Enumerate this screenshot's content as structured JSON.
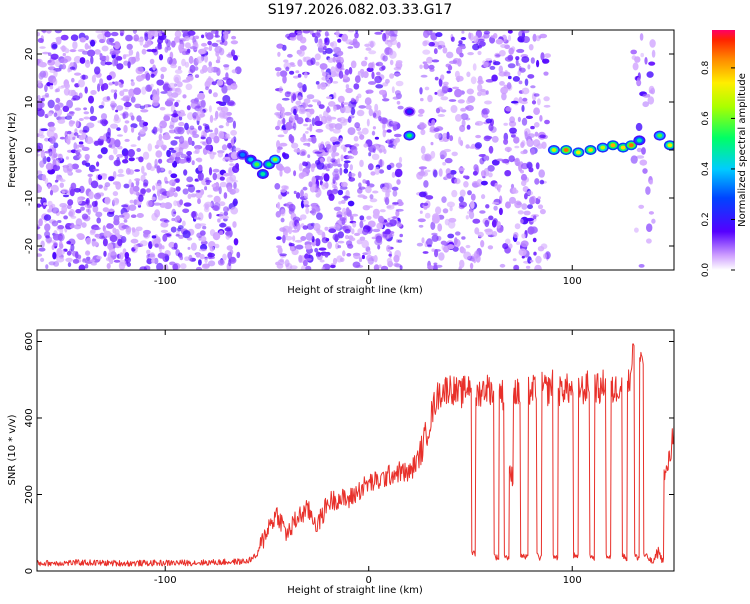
{
  "title": "S197.2026.082.03.33.G17",
  "chart_data": [
    {
      "type": "heatmap",
      "xlabel": "Height of straight line (km)",
      "ylabel": "Frequency (Hz)",
      "xlim": [
        -163,
        150
      ],
      "ylim": [
        -25,
        25
      ],
      "xticks": [
        -100,
        0,
        100
      ],
      "yticks": [
        -20,
        -10,
        0,
        10,
        20
      ],
      "colorbar": {
        "label": "Normalized spectral amplitude",
        "range": [
          0,
          0.95
        ],
        "ticks": [
          0.0,
          0.2,
          0.4,
          0.6,
          0.8
        ]
      },
      "noise_regions": [
        {
          "x_start": -163,
          "x_end": -64,
          "density": "high"
        },
        {
          "x_start": -45,
          "x_end": 16,
          "density": "high"
        },
        {
          "x_start": 25,
          "x_end": 88,
          "density": "medium"
        },
        {
          "x_start": 130,
          "x_end": 140,
          "density": "low"
        }
      ],
      "signal_points": [
        {
          "x": -62,
          "y": -1,
          "amp": 0.35
        },
        {
          "x": -58,
          "y": -2,
          "amp": 0.45
        },
        {
          "x": -55,
          "y": -3,
          "amp": 0.6
        },
        {
          "x": -52,
          "y": -5,
          "amp": 0.5
        },
        {
          "x": -49,
          "y": -3,
          "amp": 0.55
        },
        {
          "x": -46,
          "y": -2,
          "amp": 0.65
        },
        {
          "x": 20,
          "y": 3,
          "amp": 0.55
        },
        {
          "x": 20,
          "y": 8,
          "amp": 0.25
        },
        {
          "x": 91,
          "y": 0,
          "amp": 0.7
        },
        {
          "x": 97,
          "y": 0,
          "amp": 0.9
        },
        {
          "x": 103,
          "y": -0.5,
          "amp": 0.75
        },
        {
          "x": 109,
          "y": 0,
          "amp": 0.8
        },
        {
          "x": 115,
          "y": 0.5,
          "amp": 0.7
        },
        {
          "x": 120,
          "y": 1,
          "amp": 0.85
        },
        {
          "x": 125,
          "y": 0.5,
          "amp": 0.8
        },
        {
          "x": 129,
          "y": 1,
          "amp": 0.9
        },
        {
          "x": 133,
          "y": 2,
          "amp": 0.5
        },
        {
          "x": 143,
          "y": 3,
          "amp": 0.6
        },
        {
          "x": 148,
          "y": 1,
          "amp": 0.75
        }
      ]
    },
    {
      "type": "line",
      "xlabel": "Height of straight line (km)",
      "ylabel": "SNR (10 * v/v)",
      "xlim": [
        -163,
        150
      ],
      "ylim": [
        0,
        630
      ],
      "xticks": [
        -100,
        0,
        100
      ],
      "yticks": [
        0,
        200,
        400,
        600
      ],
      "series": [
        {
          "name": "SNR",
          "color": "#e8302a",
          "x": [
            -163,
            -140,
            -120,
            -100,
            -80,
            -60,
            -55,
            -52,
            -50,
            -45,
            -40,
            -35,
            -30,
            -25,
            -20,
            -15,
            -10,
            -5,
            0,
            5,
            10,
            15,
            20,
            25,
            30,
            33,
            36,
            40,
            45,
            50,
            51,
            52,
            53,
            55,
            58,
            61,
            62,
            63,
            65,
            66,
            67,
            68,
            70,
            72,
            74,
            75,
            77,
            80,
            82,
            83,
            84,
            86,
            88,
            90,
            91,
            92,
            94,
            96,
            98,
            100,
            101,
            102,
            104,
            106,
            108,
            109,
            110,
            112,
            114,
            116,
            117,
            118,
            120,
            122,
            124,
            125,
            126,
            128,
            130,
            131,
            132,
            134,
            136,
            138,
            140,
            142,
            144,
            146,
            148,
            150
          ],
          "y": [
            20,
            22,
            20,
            21,
            22,
            25,
            40,
            80,
            110,
            150,
            95,
            140,
            160,
            120,
            180,
            190,
            185,
            210,
            230,
            235,
            250,
            260,
            255,
            300,
            390,
            450,
            470,
            480,
            460,
            490,
            60,
            40,
            460,
            470,
            480,
            470,
            40,
            35,
            470,
            460,
            40,
            35,
            250,
            470,
            460,
            40,
            35,
            470,
            480,
            40,
            35,
            480,
            470,
            490,
            40,
            35,
            470,
            480,
            475,
            470,
            40,
            35,
            480,
            470,
            490,
            40,
            35,
            480,
            470,
            500,
            40,
            35,
            470,
            480,
            490,
            40,
            35,
            490,
            590,
            40,
            35,
            560,
            40,
            30,
            20,
            60,
            30,
            250,
            300,
            380
          ]
        }
      ]
    }
  ]
}
